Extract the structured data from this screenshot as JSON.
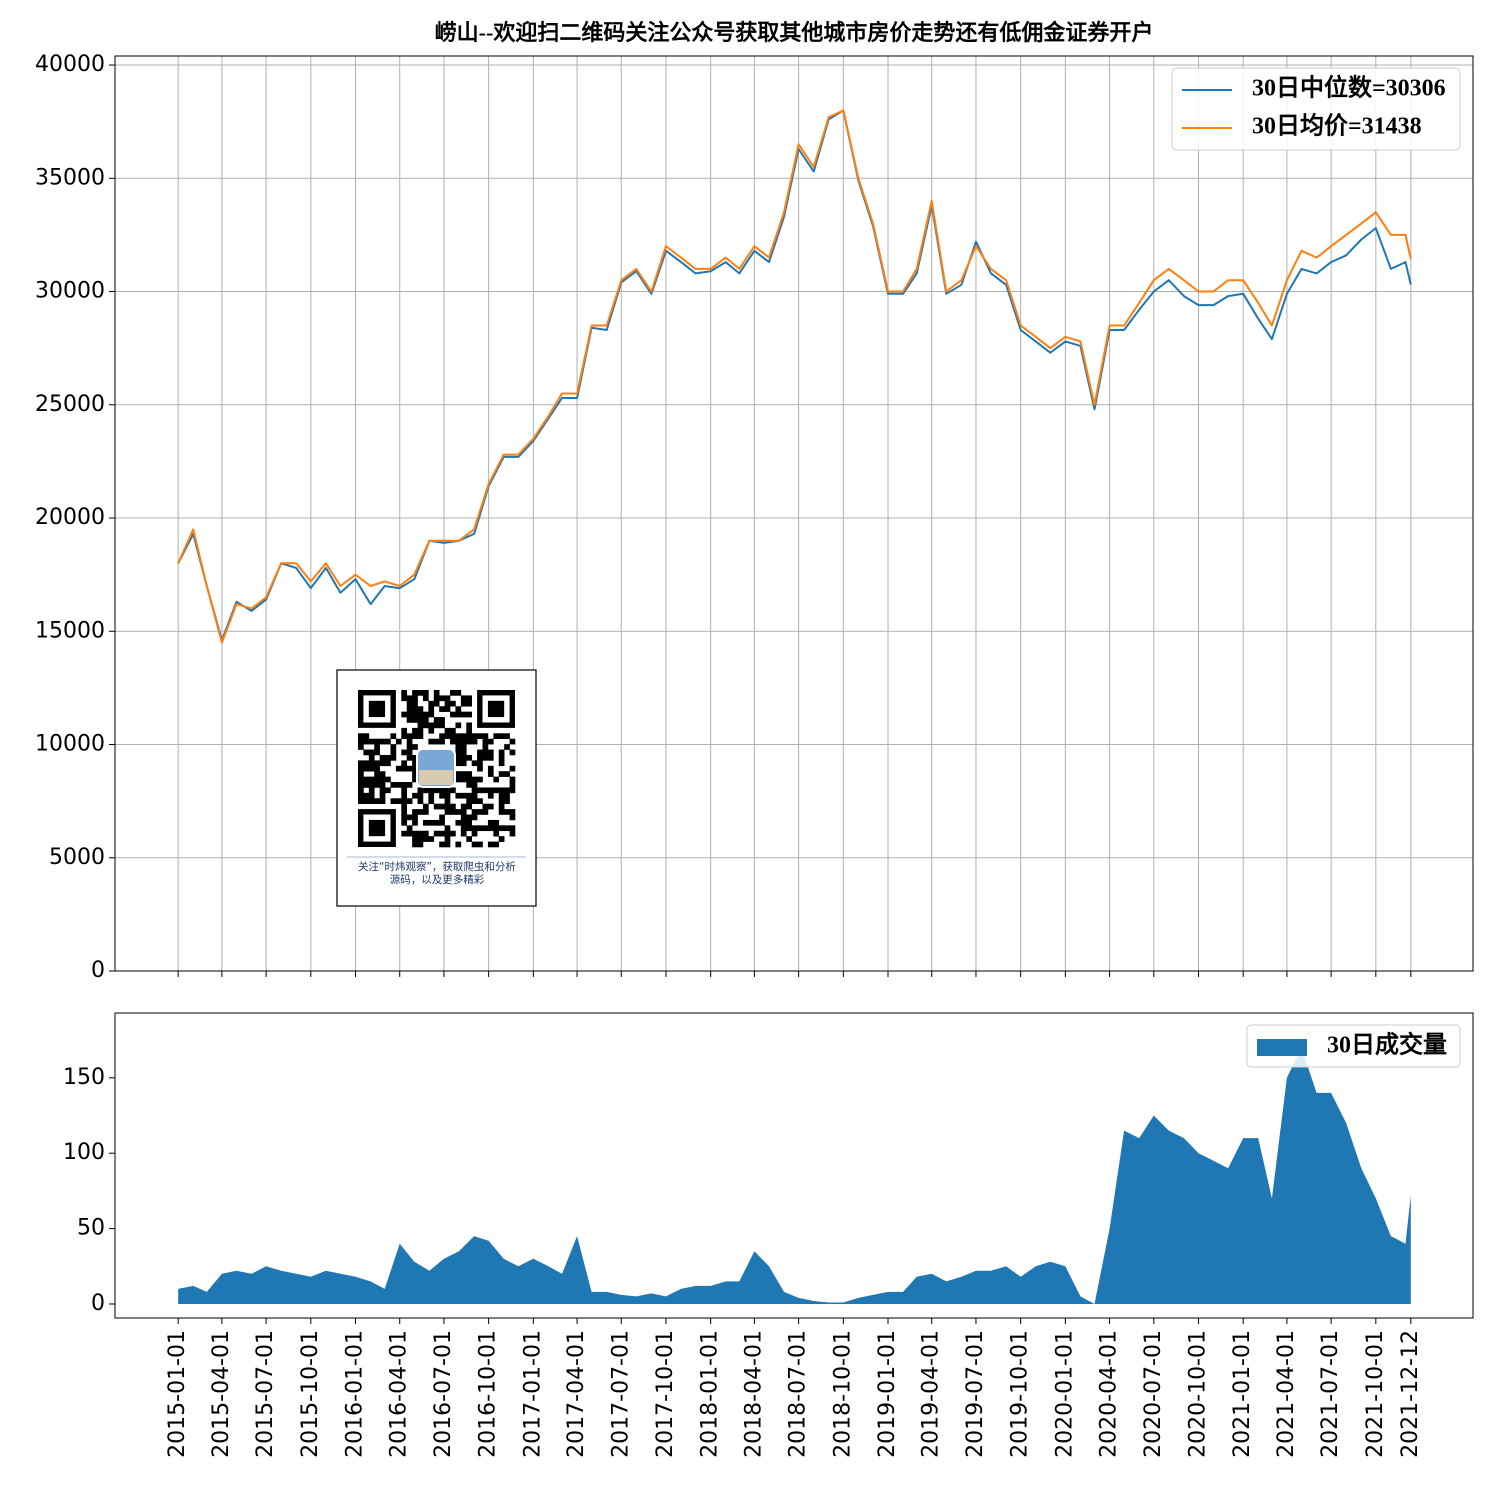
{
  "chart_data": [
    {
      "type": "line",
      "title": "崂山--欢迎扫二维码关注公众号获取其他城市房价走势还有低佣金证券开户",
      "x": [
        "2015-01-01",
        "2015-02-01",
        "2015-03-01",
        "2015-04-01",
        "2015-05-01",
        "2015-06-01",
        "2015-07-01",
        "2015-08-01",
        "2015-09-01",
        "2015-10-01",
        "2015-11-01",
        "2015-12-01",
        "2016-01-01",
        "2016-02-01",
        "2016-03-01",
        "2016-04-01",
        "2016-05-01",
        "2016-06-01",
        "2016-07-01",
        "2016-08-01",
        "2016-09-01",
        "2016-10-01",
        "2016-11-01",
        "2016-12-01",
        "2017-01-01",
        "2017-02-01",
        "2017-03-01",
        "2017-04-01",
        "2017-05-01",
        "2017-06-01",
        "2017-07-01",
        "2017-08-01",
        "2017-09-01",
        "2017-10-01",
        "2017-11-01",
        "2017-12-01",
        "2018-01-01",
        "2018-02-01",
        "2018-03-01",
        "2018-04-01",
        "2018-05-01",
        "2018-06-01",
        "2018-07-01",
        "2018-08-01",
        "2018-09-01",
        "2018-10-01",
        "2018-11-01",
        "2018-12-01",
        "2019-01-01",
        "2019-02-01",
        "2019-03-01",
        "2019-04-01",
        "2019-05-01",
        "2019-06-01",
        "2019-07-01",
        "2019-08-01",
        "2019-09-01",
        "2019-10-01",
        "2019-11-01",
        "2019-12-01",
        "2020-01-01",
        "2020-02-01",
        "2020-03-01",
        "2020-04-01",
        "2020-05-01",
        "2020-06-01",
        "2020-07-01",
        "2020-08-01",
        "2020-09-01",
        "2020-10-01",
        "2020-11-01",
        "2020-12-01",
        "2021-01-01",
        "2021-02-01",
        "2021-03-01",
        "2021-04-01",
        "2021-05-01",
        "2021-06-01",
        "2021-07-01",
        "2021-08-01",
        "2021-09-01",
        "2021-10-01",
        "2021-11-01",
        "2021-12-01",
        "2021-12-12"
      ],
      "series": [
        {
          "name": "30日中位数=30306",
          "color": "#1f77b4",
          "values": [
            18000,
            19300,
            17000,
            14600,
            16300,
            15900,
            16400,
            18000,
            17800,
            16900,
            17800,
            16700,
            17300,
            16200,
            17000,
            16900,
            17300,
            19000,
            18900,
            19000,
            19300,
            21400,
            22700,
            22700,
            23400,
            24400,
            25300,
            25300,
            28400,
            28300,
            30400,
            30900,
            29900,
            31800,
            31300,
            30800,
            30900,
            31300,
            30800,
            31800,
            31300,
            33300,
            36300,
            35300,
            37600,
            38000,
            34900,
            32900,
            29900,
            29900,
            30800,
            33800,
            29900,
            30300,
            32200,
            30800,
            30300,
            28300,
            27800,
            27300,
            27800,
            27600,
            24800,
            28300,
            28300,
            29200,
            30000,
            30500,
            29800,
            29400,
            29400,
            29800,
            29900,
            28800,
            27900,
            29900,
            31000,
            30800,
            31300,
            31600,
            32300,
            32800,
            31000,
            31300,
            30306
          ]
        },
        {
          "name": "30日均价=31438",
          "color": "#ff7f0e",
          "values": [
            18000,
            19500,
            17000,
            14500,
            16200,
            16000,
            16500,
            18000,
            18000,
            17200,
            18000,
            17000,
            17500,
            17000,
            17200,
            17000,
            17500,
            19000,
            19000,
            19000,
            19500,
            21500,
            22800,
            22800,
            23500,
            24500,
            25500,
            25500,
            28500,
            28500,
            30500,
            31000,
            30000,
            32000,
            31500,
            31000,
            31000,
            31500,
            31000,
            32000,
            31500,
            33500,
            36500,
            35500,
            37700,
            38000,
            35000,
            33000,
            30000,
            30000,
            31000,
            34000,
            30000,
            30500,
            32000,
            31000,
            30500,
            28500,
            28000,
            27500,
            28000,
            27800,
            25000,
            28500,
            28500,
            29500,
            30500,
            31000,
            30500,
            30000,
            30000,
            30500,
            30500,
            29500,
            28500,
            30500,
            31800,
            31500,
            32000,
            32500,
            33000,
            33500,
            32500,
            32500,
            31438
          ]
        }
      ],
      "ylim": [
        0,
        40400
      ],
      "yticks": [
        0,
        5000,
        10000,
        15000,
        20000,
        25000,
        30000,
        35000,
        40000
      ],
      "xlim": [
        "2014-08-24",
        "2022-04-19"
      ],
      "grid": true,
      "legend": "upper right"
    },
    {
      "type": "area",
      "x": [
        "2015-01-01",
        "2015-02-01",
        "2015-03-01",
        "2015-04-01",
        "2015-05-01",
        "2015-06-01",
        "2015-07-01",
        "2015-08-01",
        "2015-09-01",
        "2015-10-01",
        "2015-11-01",
        "2015-12-01",
        "2016-01-01",
        "2016-02-01",
        "2016-03-01",
        "2016-04-01",
        "2016-05-01",
        "2016-06-01",
        "2016-07-01",
        "2016-08-01",
        "2016-09-01",
        "2016-10-01",
        "2016-11-01",
        "2016-12-01",
        "2017-01-01",
        "2017-02-01",
        "2017-03-01",
        "2017-04-01",
        "2017-05-01",
        "2017-06-01",
        "2017-07-01",
        "2017-08-01",
        "2017-09-01",
        "2017-10-01",
        "2017-11-01",
        "2017-12-01",
        "2018-01-01",
        "2018-02-01",
        "2018-03-01",
        "2018-04-01",
        "2018-05-01",
        "2018-06-01",
        "2018-07-01",
        "2018-08-01",
        "2018-09-01",
        "2018-10-01",
        "2018-11-01",
        "2018-12-01",
        "2019-01-01",
        "2019-02-01",
        "2019-03-01",
        "2019-04-01",
        "2019-05-01",
        "2019-06-01",
        "2019-07-01",
        "2019-08-01",
        "2019-09-01",
        "2019-10-01",
        "2019-11-01",
        "2019-12-01",
        "2020-01-01",
        "2020-02-01",
        "2020-03-01",
        "2020-04-01",
        "2020-05-01",
        "2020-06-01",
        "2020-07-01",
        "2020-08-01",
        "2020-09-01",
        "2020-10-01",
        "2020-11-01",
        "2020-12-01",
        "2021-01-01",
        "2021-02-01",
        "2021-03-01",
        "2021-04-01",
        "2021-05-01",
        "2021-06-01",
        "2021-07-01",
        "2021-08-01",
        "2021-09-01",
        "2021-10-01",
        "2021-11-01",
        "2021-12-01",
        "2021-12-12"
      ],
      "series": [
        {
          "name": "30日成交量",
          "color": "#1f77b4",
          "values": [
            10,
            12,
            8,
            20,
            22,
            20,
            25,
            22,
            20,
            18,
            22,
            20,
            18,
            15,
            10,
            40,
            28,
            22,
            30,
            35,
            45,
            42,
            30,
            25,
            30,
            25,
            20,
            45,
            8,
            8,
            6,
            5,
            7,
            5,
            10,
            12,
            12,
            15,
            15,
            35,
            25,
            8,
            4,
            2,
            1,
            1,
            4,
            6,
            8,
            8,
            18,
            20,
            15,
            18,
            22,
            22,
            25,
            18,
            25,
            28,
            25,
            5,
            0,
            50,
            115,
            110,
            125,
            115,
            110,
            100,
            95,
            90,
            110,
            110,
            70,
            150,
            170,
            140,
            140,
            120,
            90,
            70,
            45,
            40,
            72
          ]
        }
      ],
      "ylim": [
        -9.3,
        193
      ],
      "yticks": [
        0,
        50,
        100,
        150
      ],
      "xlim": [
        "2014-08-24",
        "2022-04-19"
      ],
      "xticks": [
        "2015-01-01",
        "2015-04-01",
        "2015-07-01",
        "2015-10-01",
        "2016-01-01",
        "2016-04-01",
        "2016-07-01",
        "2016-10-01",
        "2017-01-01",
        "2017-04-01",
        "2017-07-01",
        "2017-10-01",
        "2018-01-01",
        "2018-04-01",
        "2018-07-01",
        "2018-10-01",
        "2019-01-01",
        "2019-04-01",
        "2019-07-01",
        "2019-10-01",
        "2020-01-01",
        "2020-04-01",
        "2020-07-01",
        "2020-10-01",
        "2021-01-01",
        "2021-04-01",
        "2021-07-01",
        "2021-10-01",
        "2021-12-12"
      ],
      "grid": false,
      "legend": "upper right"
    }
  ],
  "qr": {
    "caption": [
      "关注“时炜观察”，获取爬虫和分析",
      "源码，以及更多精彩"
    ]
  }
}
